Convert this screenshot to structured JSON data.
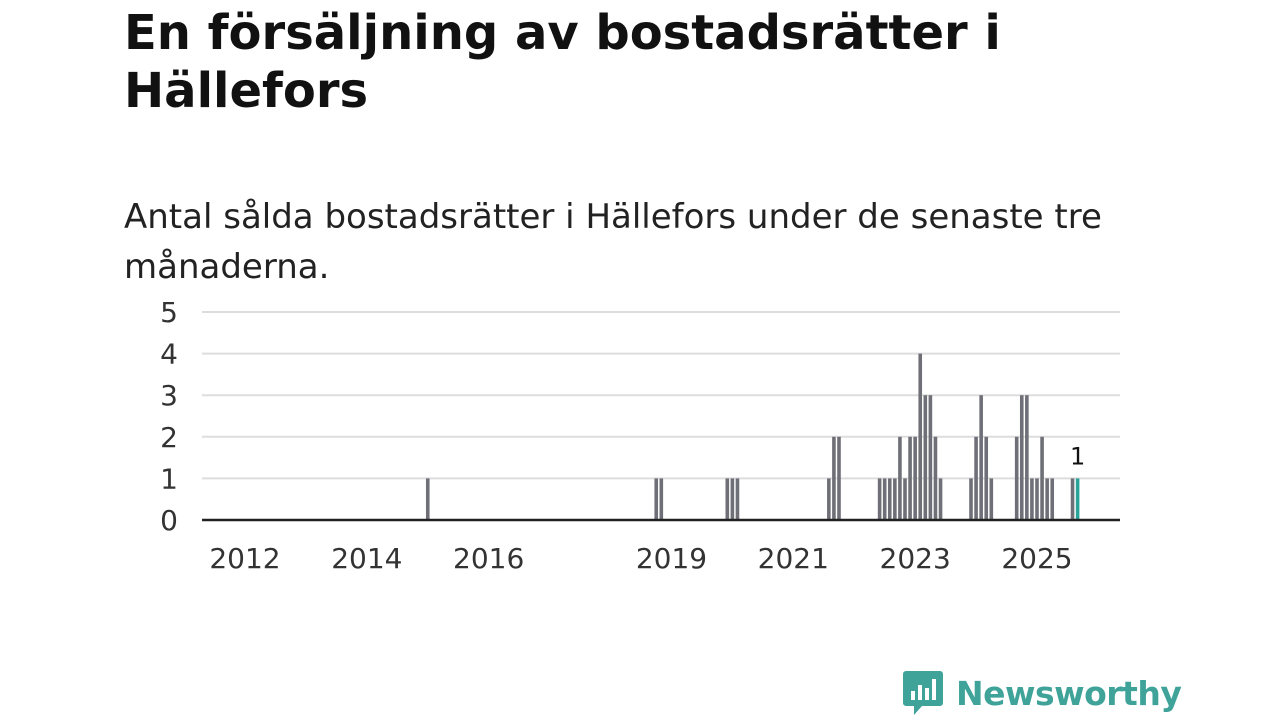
{
  "title": "En försäljning av bostadsrätter i Hällefors",
  "subtitle": "Antal sålda bostadsrätter i Hällefors under de senaste tre månaderna.",
  "brand": {
    "name": "Newsworthy",
    "color": "#3fa39a"
  },
  "colors": {
    "bar": "#6f6f78",
    "highlight": "#2aa39a",
    "grid": "#dddddd",
    "axis": "#222222"
  },
  "chart_data": {
    "type": "bar",
    "title": "Antal sålda bostadsrätter i Hällefors under de senaste tre månaderna.",
    "xlabel": "",
    "ylabel": "",
    "ylim": [
      0,
      5
    ],
    "yticks": [
      0,
      1,
      2,
      3,
      4,
      5
    ],
    "xlim": [
      2011.5,
      2026.7
    ],
    "xticks": [
      "2012",
      "2014",
      "2016",
      "2019",
      "2021",
      "2023",
      "2025"
    ],
    "grid": true,
    "series": [
      {
        "name": "Sålda bostadsrätter",
        "points": [
          {
            "month": "2015-01",
            "value": 1
          },
          {
            "month": "2018-10",
            "value": 1
          },
          {
            "month": "2018-11",
            "value": 1
          },
          {
            "month": "2019-12",
            "value": 1
          },
          {
            "month": "2020-01",
            "value": 1
          },
          {
            "month": "2020-02",
            "value": 1
          },
          {
            "month": "2021-08",
            "value": 1
          },
          {
            "month": "2021-09",
            "value": 2
          },
          {
            "month": "2021-10",
            "value": 2
          },
          {
            "month": "2022-06",
            "value": 1
          },
          {
            "month": "2022-07",
            "value": 1
          },
          {
            "month": "2022-08",
            "value": 1
          },
          {
            "month": "2022-09",
            "value": 1
          },
          {
            "month": "2022-10",
            "value": 2
          },
          {
            "month": "2022-11",
            "value": 1
          },
          {
            "month": "2022-12",
            "value": 2
          },
          {
            "month": "2023-01",
            "value": 2
          },
          {
            "month": "2023-02",
            "value": 4
          },
          {
            "month": "2023-03",
            "value": 3
          },
          {
            "month": "2023-04",
            "value": 3
          },
          {
            "month": "2023-05",
            "value": 2
          },
          {
            "month": "2023-06",
            "value": 1
          },
          {
            "month": "2023-12",
            "value": 1
          },
          {
            "month": "2024-01",
            "value": 2
          },
          {
            "month": "2024-02",
            "value": 3
          },
          {
            "month": "2024-03",
            "value": 2
          },
          {
            "month": "2024-04",
            "value": 1
          },
          {
            "month": "2024-09",
            "value": 2
          },
          {
            "month": "2024-10",
            "value": 3
          },
          {
            "month": "2024-11",
            "value": 3
          },
          {
            "month": "2024-12",
            "value": 1
          },
          {
            "month": "2025-01",
            "value": 1
          },
          {
            "month": "2025-02",
            "value": 2
          },
          {
            "month": "2025-03",
            "value": 1
          },
          {
            "month": "2025-04",
            "value": 1
          },
          {
            "month": "2025-08",
            "value": 1
          },
          {
            "month": "2025-09",
            "value": 1,
            "highlight": true
          }
        ]
      }
    ],
    "annotations": [
      {
        "month": "2025-09",
        "text": "1"
      }
    ]
  }
}
